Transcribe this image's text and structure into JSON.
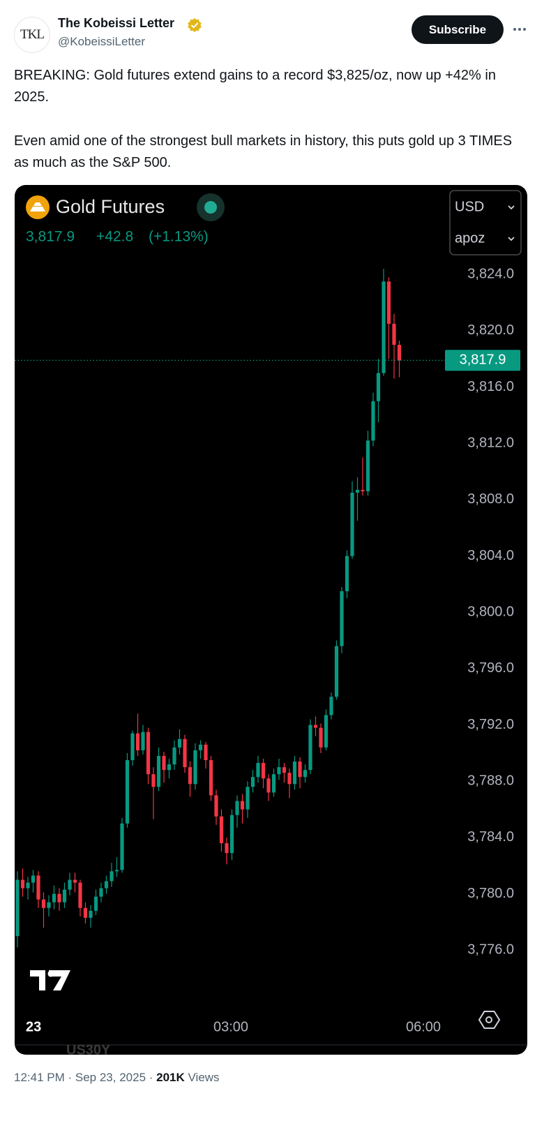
{
  "tweet": {
    "avatar_text": "TKL",
    "author": "The Kobeissi Letter",
    "handle": "@KobeissiLetter",
    "subscribe": "Subscribe",
    "paragraphs": [
      "BREAKING: Gold futures extend gains to a record $3,825/oz, now up +42% in 2025.",
      "Even amid one of the strongest bull markets in history, this puts gold up 3 TIMES as much as the S&P 500."
    ],
    "timestamp": "12:41 PM · Sep 23, 2025 ·",
    "views_count": "201K",
    "views_label": "Views",
    "watermark": "US30Y"
  },
  "chart_data": {
    "type": "candlestick",
    "title": "Gold Futures",
    "change": "+42.8",
    "change_percent": "(+1.13%)",
    "currency": "USD",
    "unit": "apoz",
    "up_color": "#089981",
    "down_color": "#f23645",
    "grid": false,
    "ylim": [
      3773.4,
      3825.4
    ],
    "yticks": [
      {
        "value": 3776,
        "label": "3,776.0"
      },
      {
        "value": 3780,
        "label": "3,780.0"
      },
      {
        "value": 3784,
        "label": "3,784.0"
      },
      {
        "value": 3788,
        "label": "3,788.0"
      },
      {
        "value": 3792,
        "label": "3,792.0"
      },
      {
        "value": 3796,
        "label": "3,796.0"
      },
      {
        "value": 3800,
        "label": "3,800.0"
      },
      {
        "value": 3804,
        "label": "3,804.0"
      },
      {
        "value": 3808,
        "label": "3,808.0"
      },
      {
        "value": 3812,
        "label": "3,812.0"
      },
      {
        "value": 3816,
        "label": "3,816.0"
      },
      {
        "value": 3820,
        "label": "3,820.0"
      },
      {
        "value": 3824,
        "label": "3,824.0"
      }
    ],
    "xtick_labels": [
      "23",
      "03:00",
      "06:00"
    ],
    "last_price": {
      "value": 3817.9,
      "label": "3,817.9"
    },
    "open": [
      3777.0,
      3781.0,
      3780.4,
      3780.8,
      3781.3,
      3779.6,
      3779.0,
      3779.4,
      3780.0,
      3779.4,
      3780.3,
      3781.0,
      3780.8,
      3779.0,
      3778.3,
      3778.8,
      3779.8,
      3780.4,
      3780.9,
      3781.6,
      3781.7,
      3785.0,
      3789.5,
      3791.4,
      3790.2,
      3791.5,
      3788.5,
      3787.6,
      3789.8,
      3788.8,
      3789.2,
      3790.4,
      3791.0,
      3789.0,
      3787.8,
      3790.2,
      3790.6,
      3789.5,
      3787.0,
      3785.5,
      3783.6,
      3782.9,
      3785.6,
      3786.6,
      3786.0,
      3787.6,
      3788.3,
      3789.3,
      3788.2,
      3787.2,
      3788.5,
      3789.0,
      3788.6,
      3787.8,
      3789.4,
      3788.3,
      3788.8,
      3792.0,
      3791.8,
      3790.4,
      3792.7,
      3794.0,
      3797.6,
      3801.5,
      3804.0,
      3808.5,
      3808.7,
      3808.6,
      3812.2,
      3815.0,
      3817.0,
      3823.5,
      3820.5,
      3819.0
    ],
    "high": [
      3781.6,
      3781.8,
      3781.2,
      3781.7,
      3781.6,
      3780.1,
      3779.9,
      3780.6,
      3780.4,
      3780.8,
      3781.5,
      3781.5,
      3781.0,
      3779.4,
      3779.2,
      3780.3,
      3780.8,
      3781.3,
      3782.2,
      3782.6,
      3785.4,
      3790.0,
      3791.6,
      3792.8,
      3792.0,
      3791.8,
      3789.0,
      3790.4,
      3790.1,
      3789.6,
      3790.9,
      3791.7,
      3791.3,
      3789.4,
      3790.7,
      3790.9,
      3790.8,
      3789.8,
      3787.4,
      3786.0,
      3784.0,
      3786.0,
      3787.0,
      3787.1,
      3788.0,
      3788.8,
      3789.8,
      3789.6,
      3788.5,
      3788.9,
      3789.6,
      3789.3,
      3788.9,
      3789.8,
      3789.7,
      3789.2,
      3792.4,
      3792.6,
      3792.1,
      3793.1,
      3794.3,
      3798.0,
      3801.8,
      3804.4,
      3809.3,
      3809.6,
      3811.0,
      3812.9,
      3815.6,
      3818.0,
      3824.4,
      3823.8,
      3821.2,
      3819.3
    ],
    "low": [
      3776.2,
      3779.8,
      3779.6,
      3780.1,
      3779.0,
      3777.6,
      3778.4,
      3778.9,
      3778.8,
      3779.0,
      3779.9,
      3780.1,
      3778.4,
      3777.9,
      3777.6,
      3778.5,
      3779.4,
      3780.0,
      3780.5,
      3781.2,
      3781.5,
      3784.7,
      3789.1,
      3789.8,
      3789.9,
      3787.8,
      3785.3,
      3787.3,
      3787.9,
      3788.2,
      3788.8,
      3789.9,
      3788.6,
      3786.9,
      3787.4,
      3789.6,
      3788.9,
      3786.6,
      3784.9,
      3783.0,
      3782.1,
      3782.4,
      3784.7,
      3785.0,
      3785.4,
      3787.2,
      3787.9,
      3787.5,
      3786.6,
      3786.9,
      3788.1,
      3787.9,
      3786.8,
      3787.4,
      3787.5,
      3787.9,
      3788.5,
      3791.2,
      3790.0,
      3790.2,
      3792.4,
      3793.8,
      3797.1,
      3801.0,
      3803.8,
      3806.5,
      3808.3,
      3808.3,
      3811.8,
      3813.5,
      3816.8,
      3818.0,
      3816.6,
      3816.7
    ],
    "close": [
      3781.0,
      3780.4,
      3780.8,
      3781.3,
      3779.6,
      3779.0,
      3779.4,
      3780.0,
      3779.4,
      3780.3,
      3781.0,
      3780.8,
      3779.0,
      3778.3,
      3778.8,
      3779.8,
      3780.4,
      3780.9,
      3781.6,
      3781.7,
      3785.0,
      3789.5,
      3791.4,
      3790.2,
      3791.5,
      3788.5,
      3787.6,
      3789.8,
      3788.8,
      3789.2,
      3790.4,
      3791.0,
      3789.0,
      3787.8,
      3790.2,
      3790.6,
      3789.5,
      3787.0,
      3785.5,
      3783.6,
      3782.9,
      3785.6,
      3786.6,
      3786.0,
      3787.6,
      3788.3,
      3789.3,
      3788.2,
      3787.2,
      3788.5,
      3789.0,
      3788.6,
      3787.8,
      3789.4,
      3788.3,
      3788.8,
      3792.0,
      3791.8,
      3790.4,
      3792.7,
      3794.0,
      3797.6,
      3801.5,
      3804.0,
      3808.5,
      3808.7,
      3808.6,
      3812.2,
      3815.0,
      3817.0,
      3823.5,
      3820.5,
      3819.0,
      3817.9
    ]
  }
}
